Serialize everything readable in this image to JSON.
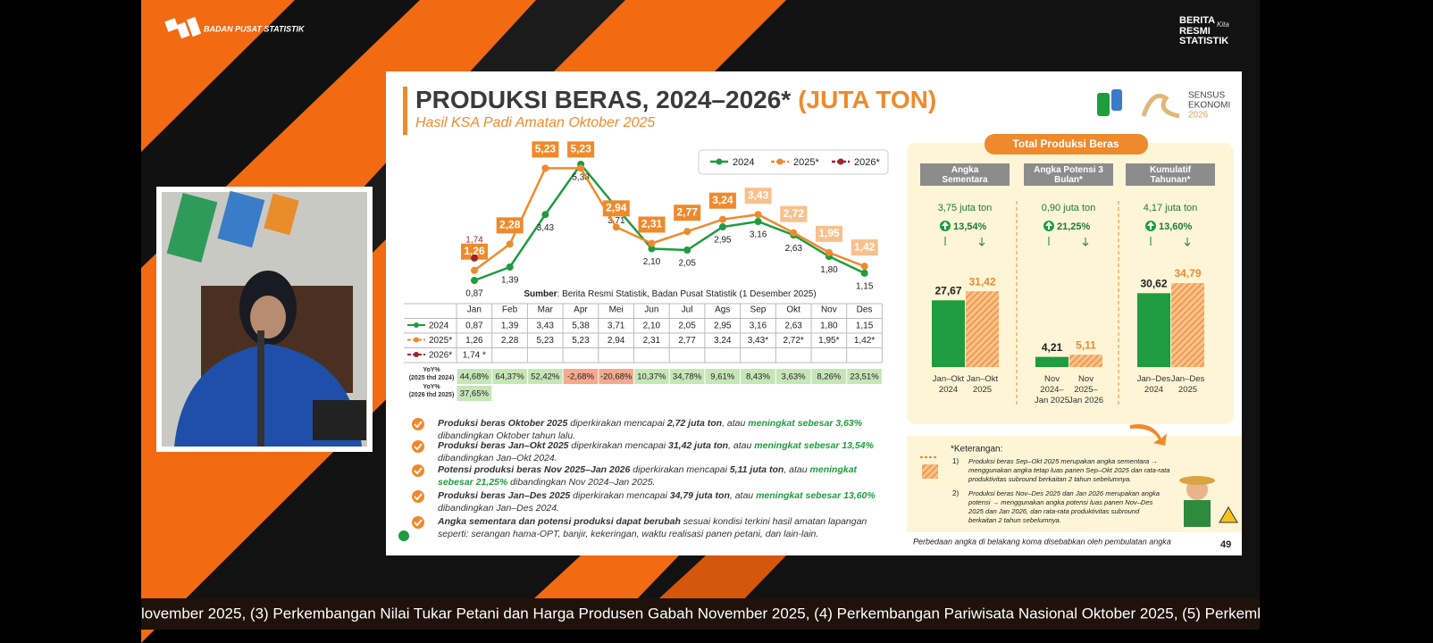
{
  "header": {
    "org": "BADAN PUSAT STATISTIK",
    "brand": [
      "BERITA",
      "RESMI",
      "STATISTIK"
    ],
    "brand_script": "Kita"
  },
  "slide": {
    "title": "PRODUKSI BERAS, 2024–2026*",
    "title_unit": "(JUTA TON)",
    "subtitle": "Hasil KSA Padi Amatan Oktober 2025",
    "logo": [
      "SENSUS",
      "EKONOMI",
      "2026"
    ],
    "source_label": "Sumber",
    "source": ": Berita Resmi Statistik, Badan Pusat Statistik (1 Desember 2025)",
    "footnote": "Perbedaan angka di belakang koma disebabkan oleh pembulatan angka",
    "page": "49"
  },
  "chart_data": [
    {
      "type": "line",
      "categories": [
        "Jan",
        "Feb",
        "Mar",
        "Apr",
        "Mei",
        "Jun",
        "Jul",
        "Ags",
        "Sep",
        "Okt",
        "Nov",
        "Des"
      ],
      "series": [
        {
          "name": "2024",
          "color": "#1e9c3f",
          "values": [
            0.87,
            1.39,
            3.43,
            5.38,
            3.71,
            2.1,
            2.05,
            2.95,
            3.16,
            2.63,
            1.8,
            1.15
          ],
          "value_labels": [
            "0,87",
            "1,39",
            "3,43",
            "5,38",
            "3,71",
            "2,10",
            "2,05",
            "2,95",
            "3,16",
            "2,63",
            "1,80",
            "1,15"
          ]
        },
        {
          "name": "2025*",
          "color": "#ef8a2c",
          "values": [
            1.26,
            2.28,
            5.23,
            5.23,
            2.94,
            2.31,
            2.77,
            3.24,
            3.43,
            2.72,
            1.95,
            1.42
          ],
          "value_labels": [
            "1,26",
            "2,28",
            "5,23",
            "5,23",
            "2,94",
            "2,31",
            "2,77",
            "3,24",
            "3,43",
            "2,72",
            "1,95",
            "1,42"
          ],
          "label_fills": [
            "#ef8a2c",
            "#ef8a2c",
            "#ef8a2c",
            "#ef8a2c",
            "#ef8a2c",
            "#ef8a2c",
            "#ef8a2c",
            "#ef8a2c",
            "#f8c08c",
            "#f8c08c",
            "#f8c08c",
            "#f8c08c"
          ]
        },
        {
          "name": "2026*",
          "color": "#a3202a",
          "values": [
            1.74,
            null,
            null,
            null,
            null,
            null,
            null,
            null,
            null,
            null,
            null,
            null
          ],
          "value_labels": [
            "1,74",
            null,
            null,
            null,
            null,
            null,
            null,
            null,
            null,
            null,
            null,
            null
          ]
        }
      ],
      "legend": "top-right"
    },
    {
      "type": "bar",
      "title": "Total Produksi Beras",
      "groups": [
        {
          "name": "Angka\nSementara",
          "total": "3,75 juta ton",
          "growth": "13,54%"
        },
        {
          "name": "Angka Potensi 3\nBulan*",
          "total": "0,90 juta ton",
          "growth": "21,25%"
        },
        {
          "name": "Kumulatif\nTahunan*",
          "total": "4,17 juta ton",
          "growth": "13,60%"
        }
      ],
      "categories": [
        "Jan–Okt\n2024",
        "Jan–Okt\n2025",
        "Nov\n2024–\nJan 2025",
        "Nov\n2025–\nJan 2026",
        "Jan–Des\n2024",
        "Jan–Des\n2025"
      ],
      "values": [
        27.67,
        31.42,
        4.21,
        5.11,
        30.62,
        34.79
      ],
      "value_labels": [
        "27,67",
        "31,42",
        "4,21",
        "5,11",
        "30,62",
        "34,79"
      ],
      "colors": [
        "#1e9c3f",
        "#ef8a2c",
        "#1e9c3f",
        "#ef8a2c",
        "#1e9c3f",
        "#ef8a2c"
      ],
      "patterns": [
        "solid",
        "hatch",
        "solid",
        "hatch",
        "solid",
        "hatch"
      ]
    }
  ],
  "table": {
    "header": [
      "Jan",
      "Feb",
      "Mar",
      "Apr",
      "Mei",
      "Jun",
      "Jul",
      "Ags",
      "Sep",
      "Okt",
      "Nov",
      "Des"
    ],
    "rows": [
      {
        "label": "2024",
        "color": "#1e9c3f",
        "cells": [
          "0,87",
          "1,39",
          "3,43",
          "5,38",
          "3,71",
          "2,10",
          "2,05",
          "2,95",
          "3,16",
          "2,63",
          "1,80",
          "1,15"
        ]
      },
      {
        "label": "2025*",
        "color": "#ef8a2c",
        "cells": [
          "1,26",
          "2,28",
          "5,23",
          "5,23",
          "2,94",
          "2,31",
          "2,77",
          "3,24",
          "3,43*",
          "2,72*",
          "1,95*",
          "1,42*"
        ]
      },
      {
        "label": "2026*",
        "color": "#a3202a",
        "cells": [
          "1,74 *",
          null,
          null,
          null,
          null,
          null,
          null,
          null,
          null,
          null,
          null,
          null
        ]
      }
    ],
    "yoy": [
      {
        "label": "YoY%\n(2025 thd 2024)",
        "cells": [
          "44,68%",
          "64,37%",
          "52,42%",
          "-2,68%",
          "-20,68%",
          "10,37%",
          "34,78%",
          "9,61%",
          "8,43%",
          "3,63%",
          "8,26%",
          "23,51%"
        ]
      },
      {
        "label": "YoY%\n(2026 thd 2025)",
        "cells": [
          "37,65%",
          null,
          null,
          null,
          null,
          null,
          null,
          null,
          null,
          null,
          null,
          null
        ]
      }
    ]
  },
  "notes": [
    [
      [
        {
          "text": "Produksi beras Oktober 2025",
          "style": "b"
        },
        {
          "text": " diperkirakan mencapai ",
          "style": "n"
        },
        {
          "text": "2,72 juta ton",
          "style": "b"
        },
        {
          "text": ", atau ",
          "style": "n"
        },
        {
          "text": "meningkat sebesar 3,63%",
          "style": "g"
        }
      ],
      [
        {
          "text": "dibandingkan Oktober tahun lalu.",
          "style": "n"
        }
      ]
    ],
    [
      [
        {
          "text": "Produksi beras Jan–Okt 2025",
          "style": "b"
        },
        {
          "text": " diperkirakan mencapai ",
          "style": "n"
        },
        {
          "text": "31,42 juta ton",
          "style": "b"
        },
        {
          "text": ", atau ",
          "style": "n"
        },
        {
          "text": "meningkat sebesar 13,54%",
          "style": "g"
        }
      ],
      [
        {
          "text": "dibandingkan Jan–Okt 2024.",
          "style": "n"
        }
      ]
    ],
    [
      [
        {
          "text": "Potensi produksi beras Nov 2025–Jan 2026",
          "style": "b"
        },
        {
          "text": " diperkirakan mencapai ",
          "style": "n"
        },
        {
          "text": "5,11 juta ton",
          "style": "b"
        },
        {
          "text": ", atau ",
          "style": "n"
        },
        {
          "text": "meningkat",
          "style": "g"
        }
      ],
      [
        {
          "text": "sebesar 21,25%",
          "style": "g"
        },
        {
          "text": " dibandingkan Nov 2024–Jan 2025.",
          "style": "n"
        }
      ]
    ],
    [
      [
        {
          "text": "Produksi beras Jan–Des 2025",
          "style": "b"
        },
        {
          "text": " diperkirakan mencapai ",
          "style": "n"
        },
        {
          "text": "34,79 juta ton",
          "style": "b"
        },
        {
          "text": ", atau ",
          "style": "n"
        },
        {
          "text": "meningkat sebesar 13,60%",
          "style": "g"
        }
      ],
      [
        {
          "text": "dibandingkan Jan–Des 2024.",
          "style": "n"
        }
      ]
    ],
    [
      [
        {
          "text": "Angka sementara dan potensi produksi dapat berubah",
          "style": "b"
        },
        {
          "text": " sesuai kondisi terkini hasil amatan lapangan",
          "style": "n"
        }
      ],
      [
        {
          "text": "seperti: serangan hama-OPT, banjir, kekeringan, waktu realisasi panen petani, dan lain-lain.",
          "style": "n"
        }
      ]
    ]
  ],
  "keterangan": {
    "title": "*Keterangan:",
    "items": [
      {
        "num": "1)",
        "lines": [
          "Produksi beras Sep–Okt 2025 merupakan angka sementara →",
          "menggunakan angka tetap luas panen Sep–Okt 2025 dan rata-rata",
          "produktivitas subround berkaitan 2 tahun sebelumnya."
        ]
      },
      {
        "num": "2)",
        "lines": [
          "Produksi beras Nov–Des 2025 dan Jan 2026 merupakan angka",
          "potensi → menggunakan angka potensi luas panen Nov–Des",
          "2025 dan Jan 2026, dan rata-rata produktivitas subround",
          "berkaitan 2 tahun sebelumnya."
        ]
      }
    ]
  },
  "ticker": "lovember 2025, (3) Perkembangan Nilai Tukar Petani dan Harga Produsen Gabah November 2025, (4) Perkembangan Pariwisata Nasional Oktober 2025, (5) Perkemb"
}
